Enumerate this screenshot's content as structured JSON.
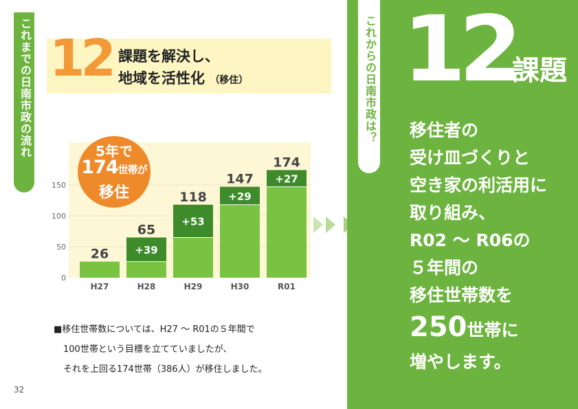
{
  "section_left": "これまでの日南市政の流れ",
  "header": {
    "number": "12",
    "title_line1": "課題を解決し、",
    "title_line2": "地域を活性化",
    "subtitle": "（移住）"
  },
  "bubble": {
    "line1": "5年で",
    "line2_num": "174",
    "line2_unit": "世帯が",
    "line3": "移住"
  },
  "chart_data": {
    "type": "bar",
    "categories": [
      "H27",
      "H28",
      "H29",
      "H30",
      "R01"
    ],
    "values": [
      26,
      65,
      118,
      147,
      174
    ],
    "increments": [
      null,
      "+39",
      "+53",
      "+29",
      "+27"
    ],
    "yticks": [
      0,
      50,
      100,
      150
    ],
    "ylim": [
      0,
      200
    ],
    "colors": {
      "base": "#79c242",
      "increment": "#3d8b2a",
      "background": "#fdf7d6"
    }
  },
  "note": {
    "line1": "■移住世帯数については、H27 ～ R01の５年間で",
    "line2": "100世帯という目標を立てていましたが、",
    "line3": "それを上回る174世帯（386人）が移住しました。"
  },
  "page_number": "32",
  "section_right": "これからの日南市政は？",
  "right": {
    "number": "12",
    "kadai": "課題",
    "line1": "移住者の",
    "line2": "受け皿づくりと",
    "line3": "空き家の利活用に",
    "line4": "取り組み、",
    "line5": "R02 ～ R06の",
    "line6": "５年間の",
    "line7": "移住世帯数を",
    "line8_num": "250",
    "line8_unit": "世帯に",
    "line9": "増やします。"
  },
  "colors": {
    "green": "#6db33f",
    "orange": "#f29a38",
    "band": "#fdf6c3"
  }
}
